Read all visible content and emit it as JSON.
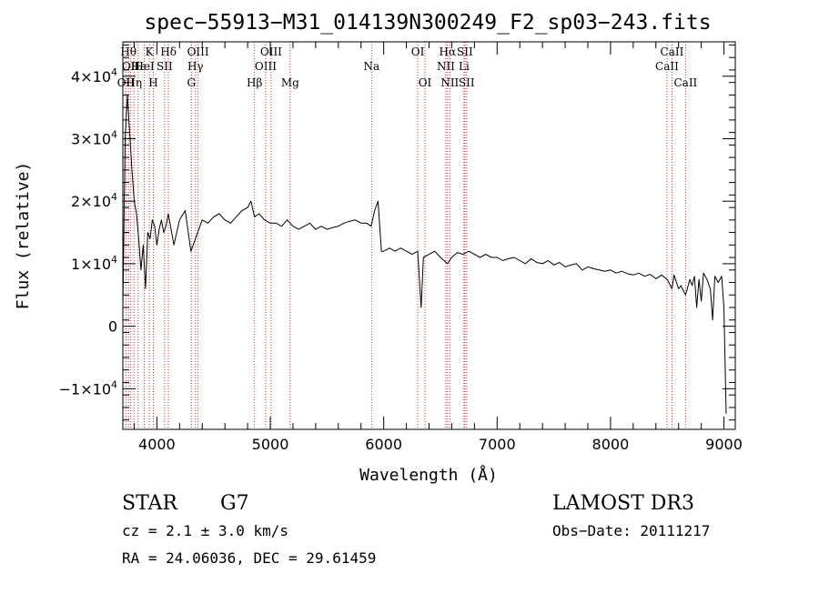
{
  "chart_data": {
    "type": "line",
    "title": "spec−55913−M31_014139N300249_F2_sp03−243.fits",
    "xlabel": "Wavelength (Å)",
    "ylabel": "Flux (relative)",
    "xlim": [
      3700,
      9100
    ],
    "ylim": [
      -16500,
      45500
    ],
    "x_ticks": [
      {
        "value": 4000,
        "label": "4000"
      },
      {
        "value": 5000,
        "label": "5000"
      },
      {
        "value": 6000,
        "label": "6000"
      },
      {
        "value": 7000,
        "label": "7000"
      },
      {
        "value": 8000,
        "label": "8000"
      },
      {
        "value": 9000,
        "label": "9000"
      }
    ],
    "y_ticks": [
      {
        "value": -10000,
        "mant": "−1×10",
        "exp": "4"
      },
      {
        "value": 0,
        "mant": "0",
        "exp": ""
      },
      {
        "value": 10000,
        "mant": "1×10",
        "exp": "4"
      },
      {
        "value": 20000,
        "mant": "2×10",
        "exp": "4"
      },
      {
        "value": 30000,
        "mant": "3×10",
        "exp": "4"
      },
      {
        "value": 40000,
        "mant": "4×10",
        "exp": "4"
      }
    ],
    "series": [
      {
        "x": [
          3700,
          3720,
          3740,
          3760,
          3780,
          3800,
          3820,
          3840,
          3860,
          3880,
          3900,
          3920,
          3940,
          3960,
          3980,
          4000,
          4020,
          4040,
          4060,
          4080,
          4100,
          4150,
          4200,
          4250,
          4300,
          4340,
          4400,
          4450,
          4500,
          4550,
          4600,
          4650,
          4700,
          4750,
          4800,
          4830,
          4861,
          4900,
          4950,
          5000,
          5050,
          5100,
          5150,
          5200,
          5250,
          5300,
          5350,
          5400,
          5450,
          5500,
          5550,
          5600,
          5650,
          5700,
          5750,
          5800,
          5850,
          5890,
          5920,
          5950,
          5980,
          6000,
          6050,
          6100,
          6150,
          6200,
          6250,
          6300,
          6330,
          6350,
          6400,
          6450,
          6500,
          6563,
          6600,
          6650,
          6700,
          6750,
          6800,
          6850,
          6900,
          6950,
          7000,
          7050,
          7100,
          7150,
          7200,
          7250,
          7300,
          7350,
          7400,
          7450,
          7500,
          7550,
          7600,
          7650,
          7700,
          7750,
          7800,
          7850,
          7900,
          7950,
          8000,
          8050,
          8100,
          8150,
          8200,
          8250,
          8300,
          8350,
          8400,
          8450,
          8500,
          8542,
          8560,
          8600,
          8620,
          8662,
          8700,
          8720,
          8740,
          8760,
          8780,
          8800,
          8820,
          8850,
          8880,
          8900,
          8920,
          8950,
          8980,
          9000,
          9020
        ],
        "y": [
          3000,
          30000,
          37000,
          31000,
          25000,
          20000,
          18000,
          14000,
          9000,
          13000,
          6000,
          15000,
          14000,
          17000,
          16000,
          13000,
          15500,
          17000,
          15000,
          16000,
          18000,
          13000,
          17000,
          18500,
          12000,
          14000,
          17000,
          16500,
          17500,
          18000,
          17000,
          16500,
          17500,
          18500,
          19000,
          20000,
          17500,
          18000,
          17000,
          16500,
          16500,
          16000,
          17000,
          16000,
          15500,
          16000,
          16500,
          15500,
          16000,
          15500,
          15800,
          16000,
          16500,
          16800,
          17000,
          16500,
          16500,
          16000,
          18500,
          20000,
          12000,
          12000,
          12500,
          12000,
          12500,
          12000,
          11500,
          12000,
          3000,
          11000,
          11500,
          12000,
          11000,
          10000,
          11000,
          11800,
          11500,
          12000,
          11500,
          11000,
          11500,
          11000,
          11000,
          10500,
          10800,
          11000,
          10500,
          10000,
          10800,
          10200,
          10000,
          10500,
          9800,
          10200,
          9500,
          9800,
          10000,
          9000,
          9500,
          9200,
          9000,
          8800,
          9000,
          8500,
          8800,
          8400,
          8200,
          8500,
          8000,
          8300,
          7600,
          8200,
          7500,
          6000,
          8200,
          6000,
          6500,
          5000,
          7500,
          6500,
          8000,
          3000,
          7500,
          4000,
          8500,
          7500,
          6000,
          1000,
          8000,
          7000,
          8000,
          3000,
          -14000
        ]
      }
    ],
    "line_markers": [
      {
        "wave": 3727,
        "label": "OII",
        "row": 3
      },
      {
        "wave": 3750,
        "label": "Hθ",
        "row": 1
      },
      {
        "wave": 3770,
        "label": "OII",
        "row": 2
      },
      {
        "wave": 3798,
        "label": "Hη",
        "row": 3
      },
      {
        "wave": 3835,
        "label": "Hε",
        "row": 2
      },
      {
        "wave": 3889,
        "label": "HeI",
        "row": 2
      },
      {
        "wave": 3934,
        "label": "K",
        "row": 1
      },
      {
        "wave": 3969,
        "label": "H",
        "row": 3
      },
      {
        "wave": 4068,
        "label": "SII",
        "row": 2
      },
      {
        "wave": 4102,
        "label": "Hδ",
        "row": 1
      },
      {
        "wave": 4304,
        "label": "G",
        "row": 3
      },
      {
        "wave": 4340,
        "label": "Hγ",
        "row": 2
      },
      {
        "wave": 4363,
        "label": "OIII",
        "row": 1
      },
      {
        "wave": 4861,
        "label": "Hβ",
        "row": 3
      },
      {
        "wave": 4959,
        "label": "OIII",
        "row": 2
      },
      {
        "wave": 5007,
        "label": "OIII",
        "row": 1
      },
      {
        "wave": 5175,
        "label": "Mg",
        "row": 3
      },
      {
        "wave": 5893,
        "label": "Na",
        "row": 2
      },
      {
        "wave": 6300,
        "label": "OI",
        "row": 1
      },
      {
        "wave": 6364,
        "label": "OI",
        "row": 3
      },
      {
        "wave": 6548,
        "label": "NII",
        "row": 2
      },
      {
        "wave": 6563,
        "label": "Hα",
        "row": 1
      },
      {
        "wave": 6583,
        "label": "NII",
        "row": 3
      },
      {
        "wave": 6708,
        "label": "Li",
        "row": 2
      },
      {
        "wave": 6716,
        "label": "SII",
        "row": 1
      },
      {
        "wave": 6731,
        "label": "SII",
        "row": 3
      },
      {
        "wave": 8498,
        "label": "CaII",
        "row": 2
      },
      {
        "wave": 8542,
        "label": "CaII",
        "row": 1
      },
      {
        "wave": 8662,
        "label": "CaII",
        "row": 3
      }
    ]
  },
  "info": {
    "class": "STAR",
    "subclass": "G7",
    "survey": "LAMOST DR3",
    "cz": "cz = 2.1 ± 3.0 km/s",
    "obs_date": "Obs−Date: 20111217",
    "coords": "RA =  24.06036, DEC =  29.61459"
  },
  "colors": {
    "line": "#000000",
    "marker": "#cc3333",
    "background": "#ffffff"
  }
}
